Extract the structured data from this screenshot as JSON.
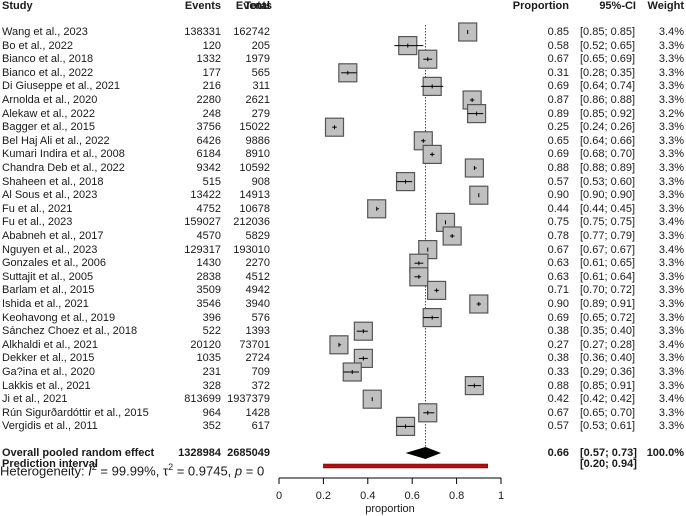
{
  "chart_data": {
    "type": "forest",
    "title": "",
    "xlabel": "proportion",
    "xlim": [
      0,
      1
    ],
    "xticks": [
      "0",
      "0.2",
      "0.4",
      "0.6",
      "0.8",
      "1"
    ],
    "reference_line": 0.66,
    "columns": [
      "Study",
      "Events",
      "Total",
      "Proportion",
      "95%-CI",
      "Weight"
    ],
    "studies": [
      {
        "study": "Wang et al., 2023",
        "events": "138331",
        "total": "162742",
        "prop": 0.85,
        "lo": 0.85,
        "hi": 0.85,
        "ci": "[0.85; 0.85]",
        "weight": "3.4%"
      },
      {
        "study": "Bo et al., 2022",
        "events": "120",
        "total": "205",
        "prop": 0.58,
        "lo": 0.52,
        "hi": 0.65,
        "ci": "[0.52; 0.65]",
        "weight": "3.3%"
      },
      {
        "study": "Bianco et al., 2018",
        "events": "1332",
        "total": "1979",
        "prop": 0.67,
        "lo": 0.65,
        "hi": 0.69,
        "ci": "[0.65; 0.69]",
        "weight": "3.3%"
      },
      {
        "study": "Bianco et al., 2022",
        "events": "177",
        "total": "565",
        "prop": 0.31,
        "lo": 0.28,
        "hi": 0.35,
        "ci": "[0.28; 0.35]",
        "weight": "3.3%"
      },
      {
        "study": "Di Giuseppe et al., 2021",
        "events": "216",
        "total": "311",
        "prop": 0.69,
        "lo": 0.64,
        "hi": 0.74,
        "ci": "[0.64; 0.74]",
        "weight": "3.3%"
      },
      {
        "study": "Arnolda et al., 2020",
        "events": "2280",
        "total": "2621",
        "prop": 0.87,
        "lo": 0.86,
        "hi": 0.88,
        "ci": "[0.86; 0.88]",
        "weight": "3.3%"
      },
      {
        "study": "Alekaw et al., 2022",
        "events": "248",
        "total": "279",
        "prop": 0.89,
        "lo": 0.85,
        "hi": 0.92,
        "ci": "[0.85; 0.92]",
        "weight": "3.2%"
      },
      {
        "study": "Bagger et al., 2015",
        "events": "3756",
        "total": "15022",
        "prop": 0.25,
        "lo": 0.24,
        "hi": 0.26,
        "ci": "[0.24; 0.26]",
        "weight": "3.3%"
      },
      {
        "study": "Bel Haj Ali et al., 2022",
        "events": "6426",
        "total": "9886",
        "prop": 0.65,
        "lo": 0.64,
        "hi": 0.66,
        "ci": "[0.64; 0.66]",
        "weight": "3.3%"
      },
      {
        "study": "Kumari Indira et al., 2008",
        "events": "6184",
        "total": "8910",
        "prop": 0.69,
        "lo": 0.68,
        "hi": 0.7,
        "ci": "[0.68; 0.70]",
        "weight": "3.3%"
      },
      {
        "study": "Chandra Deb et al., 2022",
        "events": "9342",
        "total": "10592",
        "prop": 0.88,
        "lo": 0.88,
        "hi": 0.89,
        "ci": "[0.88; 0.89]",
        "weight": "3.3%"
      },
      {
        "study": "Shaheen et al., 2018",
        "events": "515",
        "total": "908",
        "prop": 0.57,
        "lo": 0.53,
        "hi": 0.6,
        "ci": "[0.53; 0.60]",
        "weight": "3.3%"
      },
      {
        "study": "Al Sous et al., 2023",
        "events": "13422",
        "total": "14913",
        "prop": 0.9,
        "lo": 0.9,
        "hi": 0.9,
        "ci": "[0.90; 0.90]",
        "weight": "3.3%"
      },
      {
        "study": "Fu et al., 2021",
        "events": "4752",
        "total": "10678",
        "prop": 0.44,
        "lo": 0.44,
        "hi": 0.45,
        "ci": "[0.44; 0.45]",
        "weight": "3.3%"
      },
      {
        "study": "Fu et al., 2023",
        "events": "159027",
        "total": "212036",
        "prop": 0.75,
        "lo": 0.75,
        "hi": 0.75,
        "ci": "[0.75; 0.75]",
        "weight": "3.4%"
      },
      {
        "study": "Ababneh et al., 2017",
        "events": "4570",
        "total": "5829",
        "prop": 0.78,
        "lo": 0.77,
        "hi": 0.79,
        "ci": "[0.77; 0.79]",
        "weight": "3.3%"
      },
      {
        "study": "Nguyen et al., 2023",
        "events": "129317",
        "total": "193010",
        "prop": 0.67,
        "lo": 0.67,
        "hi": 0.67,
        "ci": "[0.67; 0.67]",
        "weight": "3.4%"
      },
      {
        "study": "Gonzales et al., 2006",
        "events": "1430",
        "total": "2270",
        "prop": 0.63,
        "lo": 0.61,
        "hi": 0.65,
        "ci": "[0.61; 0.65]",
        "weight": "3.3%"
      },
      {
        "study": "Suttajit et al., 2005",
        "events": "2838",
        "total": "4512",
        "prop": 0.63,
        "lo": 0.61,
        "hi": 0.64,
        "ci": "[0.61; 0.64]",
        "weight": "3.3%"
      },
      {
        "study": "Barlam et al., 2015",
        "events": "3509",
        "total": "4942",
        "prop": 0.71,
        "lo": 0.7,
        "hi": 0.72,
        "ci": "[0.70; 0.72]",
        "weight": "3.3%"
      },
      {
        "study": "Ishida et al., 2021",
        "events": "3546",
        "total": "3940",
        "prop": 0.9,
        "lo": 0.89,
        "hi": 0.91,
        "ci": "[0.89; 0.91]",
        "weight": "3.3%"
      },
      {
        "study": "Keohavong et al., 2019",
        "events": "396",
        "total": "576",
        "prop": 0.69,
        "lo": 0.65,
        "hi": 0.72,
        "ci": "[0.65; 0.72]",
        "weight": "3.3%"
      },
      {
        "study": "Sánchez Choez et al., 2018",
        "events": "522",
        "total": "1393",
        "prop": 0.38,
        "lo": 0.35,
        "hi": 0.4,
        "ci": "[0.35; 0.40]",
        "weight": "3.3%"
      },
      {
        "study": "Alkhaldi et al., 2021",
        "events": "20120",
        "total": "73701",
        "prop": 0.27,
        "lo": 0.27,
        "hi": 0.28,
        "ci": "[0.27; 0.28]",
        "weight": "3.4%"
      },
      {
        "study": "Dekker et al., 2015",
        "events": "1035",
        "total": "2724",
        "prop": 0.38,
        "lo": 0.36,
        "hi": 0.4,
        "ci": "[0.36; 0.40]",
        "weight": "3.3%"
      },
      {
        "study": "Ga?ina et al., 2020",
        "events": "231",
        "total": "709",
        "prop": 0.33,
        "lo": 0.29,
        "hi": 0.36,
        "ci": "[0.29; 0.36]",
        "weight": "3.3%"
      },
      {
        "study": "Lakkis et al., 2021",
        "events": "328",
        "total": "372",
        "prop": 0.88,
        "lo": 0.85,
        "hi": 0.91,
        "ci": "[0.85; 0.91]",
        "weight": "3.3%"
      },
      {
        "study": "Ji et al., 2021",
        "events": "813699",
        "total": "1937379",
        "prop": 0.42,
        "lo": 0.42,
        "hi": 0.42,
        "ci": "[0.42; 0.42]",
        "weight": "3.4%"
      },
      {
        "study": "Rún Sigurðardóttir et al., 2015",
        "events": "964",
        "total": "1428",
        "prop": 0.67,
        "lo": 0.65,
        "hi": 0.7,
        "ci": "[0.65; 0.70]",
        "weight": "3.3%"
      },
      {
        "study": "Vergidis et al., 2011",
        "events": "352",
        "total": "617",
        "prop": 0.57,
        "lo": 0.53,
        "hi": 0.61,
        "ci": "[0.53; 0.61]",
        "weight": "3.3%"
      }
    ],
    "pooled": {
      "label": "Overall pooled random effect",
      "events": "1328984",
      "total": "2685049",
      "prop": 0.66,
      "lo": 0.57,
      "hi": 0.73,
      "ci": "[0.57; 0.73]",
      "weight": "100.0%"
    },
    "prediction_interval": {
      "label": "Prediction interval",
      "lo": 0.2,
      "hi": 0.94,
      "ci": "[0.20; 0.94]"
    },
    "heterogeneity": {
      "prefix": "Heterogeneity: ",
      "i2_sym": "I",
      "i2": " = 99.99%, ",
      "tau_sym": "τ",
      "tau2": " = 0.9745, ",
      "p_sym": "p",
      "p": " = 0"
    },
    "colors": {
      "box": "#c0c0c0",
      "box_border": "#555555",
      "ref_line": "#3333cc",
      "diamond": "#000000",
      "pi_bar": "#b01010"
    }
  }
}
